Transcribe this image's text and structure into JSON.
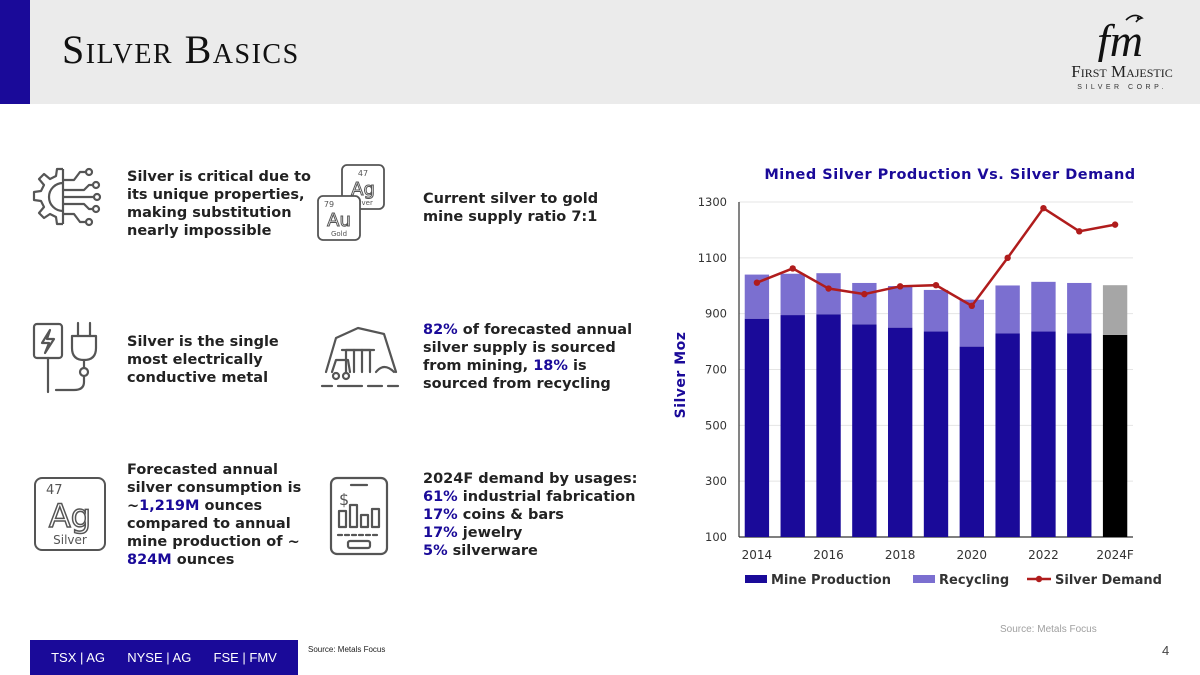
{
  "header": {
    "title": "Silver Basics"
  },
  "logo": {
    "monogram": "fm",
    "name": "First Majestic",
    "sub": "SILVER CORP."
  },
  "features": {
    "f1": {
      "lines": [
        [
          "Silver is critical due to"
        ],
        [
          "its unique properties,"
        ],
        [
          "making substitution"
        ],
        [
          "nearly impossible"
        ]
      ]
    },
    "f2": {
      "lines": [
        [
          "Current silver to gold"
        ],
        [
          "mine supply ratio 7:1"
        ]
      ]
    },
    "f3": {
      "lines": [
        [
          "Silver is the single"
        ],
        [
          "most electrically"
        ],
        [
          "conductive metal"
        ]
      ]
    },
    "f4": {
      "lines": [
        [
          "82%",
          " of forecasted annual"
        ],
        [
          "silver supply is sourced"
        ],
        [
          "from mining, ",
          "18%",
          " is"
        ],
        [
          "sourced from recycling"
        ]
      ]
    },
    "f5": {
      "lines": [
        [
          "Forecasted annual"
        ],
        [
          "silver consumption is"
        ],
        [
          "~",
          "1,219M",
          " ounces"
        ],
        [
          "compared to annual"
        ],
        [
          "mine production of ~"
        ],
        [
          "824M",
          " ounces"
        ]
      ]
    },
    "f6": {
      "lines": [
        [
          "2024F demand by usages:"
        ],
        [
          "61%",
          " industrial fabrication"
        ],
        [
          "17%",
          " coins & bars"
        ],
        [
          "17%",
          " jewelry"
        ],
        [
          "5%",
          " silverware"
        ]
      ]
    }
  },
  "element_tiles": {
    "silver": {
      "number": "47",
      "symbol": "Ag",
      "name": "Silver"
    },
    "gold": {
      "number": "79",
      "symbol": "Au",
      "name": "Gold"
    }
  },
  "icons": {
    "f1": "gear-circuit-icon",
    "f2": "silver-gold-element-icon",
    "f3": "electric-plug-icon",
    "f4": "mine-cart-icon",
    "f5": "silver-element-icon",
    "f6": "tablet-finance-icon"
  },
  "chart_data": {
    "type": "bar",
    "title": "Mined Silver Production Vs. Silver Demand",
    "ylabel": "Silver  Moz",
    "ylim": [
      100,
      1300
    ],
    "yticks": [
      100,
      300,
      500,
      700,
      900,
      1100,
      1300
    ],
    "categories": [
      "2014",
      "2015",
      "2016",
      "2017",
      "2018",
      "2019",
      "2020",
      "2021",
      "2022",
      "2023",
      "2024F"
    ],
    "xtick_labels": [
      "2014",
      "",
      "2016",
      "",
      "2018",
      "",
      "2020",
      "",
      "2022",
      "",
      "2024F"
    ],
    "stacked": true,
    "series": [
      {
        "name": "Mine Production",
        "type": "bar",
        "color": "#1a0a99",
        "values": [
          882,
          895,
          898,
          862,
          850,
          836,
          782,
          829,
          836,
          830,
          824
        ]
      },
      {
        "name": "Recycling",
        "type": "bar",
        "color": "#7b6fd0",
        "values": [
          158,
          148,
          147,
          148,
          149,
          149,
          168,
          172,
          178,
          180,
          178
        ]
      },
      {
        "name": "Silver Demand",
        "type": "line",
        "color": "#b01c1c",
        "values": [
          1011,
          1062,
          990,
          970,
          998,
          1002,
          928,
          1100,
          1278,
          1195,
          1219
        ]
      }
    ],
    "last_bar_colors": {
      "Mine Production": "#000000",
      "Recycling": "#a6a6a6"
    },
    "grid": true,
    "legend": "bottom"
  },
  "source_right": "Source: Metals Focus",
  "source_bottom": "Source: Metals Focus",
  "page_number": "4",
  "footer": {
    "items": [
      "TSX | AG",
      "NYSE | AG",
      "FSE | FMV"
    ]
  },
  "colors": {
    "accent": "#1a0a99",
    "recycling": "#7b6fd0",
    "demand": "#b01c1c",
    "header_bg": "#ebebeb"
  }
}
